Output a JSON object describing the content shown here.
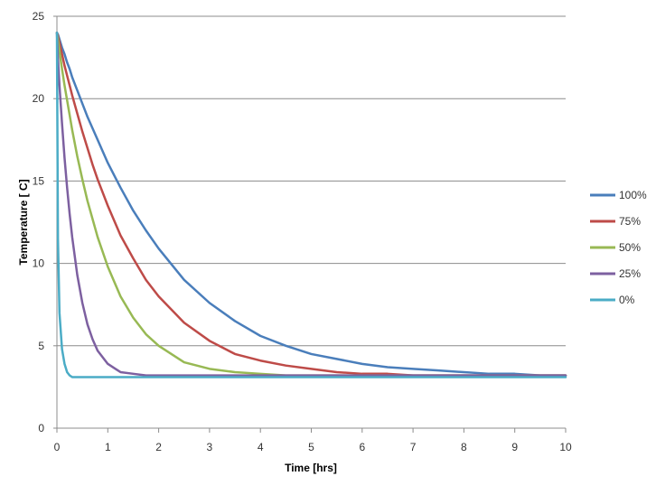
{
  "chart_data": {
    "type": "line",
    "title": "",
    "xlabel": "Time [hrs]",
    "ylabel": "Temperature [ C]",
    "xlim": [
      0,
      10
    ],
    "ylim": [
      0,
      25
    ],
    "xticks": [
      0,
      1,
      2,
      3,
      4,
      5,
      6,
      7,
      8,
      9,
      10
    ],
    "yticks": [
      0,
      5,
      10,
      15,
      20,
      25
    ],
    "grid": "horizontal",
    "legend_position": "right",
    "x": [
      0,
      0.02,
      0.05,
      0.1,
      0.15,
      0.2,
      0.25,
      0.3,
      0.4,
      0.5,
      0.6,
      0.7,
      0.8,
      1,
      1.25,
      1.5,
      1.75,
      2,
      2.5,
      3,
      3.5,
      4,
      4.5,
      5,
      5.5,
      6,
      6.5,
      7,
      7.5,
      8,
      8.5,
      9,
      9.5,
      10
    ],
    "series": [
      {
        "name": "100%",
        "color": "#4a7ebb",
        "values": [
          24.0,
          23.9,
          23.6,
          23.1,
          22.7,
          22.2,
          21.8,
          21.3,
          20.5,
          19.7,
          18.9,
          18.2,
          17.5,
          16.1,
          14.6,
          13.2,
          12.0,
          10.9,
          9.0,
          7.6,
          6.5,
          5.6,
          5.0,
          4.5,
          4.2,
          3.9,
          3.7,
          3.6,
          3.5,
          3.4,
          3.3,
          3.3,
          3.2,
          3.2
        ]
      },
      {
        "name": "75%",
        "color": "#be4b48",
        "values": [
          24.0,
          23.8,
          23.4,
          22.7,
          22.0,
          21.4,
          20.8,
          20.2,
          19.1,
          18.0,
          17.0,
          16.0,
          15.1,
          13.5,
          11.7,
          10.3,
          9.0,
          8.0,
          6.4,
          5.3,
          4.5,
          4.1,
          3.8,
          3.6,
          3.4,
          3.3,
          3.3,
          3.2,
          3.2,
          3.2,
          3.2,
          3.2,
          3.2,
          3.2
        ]
      },
      {
        "name": "50%",
        "color": "#98b954",
        "values": [
          24.0,
          23.6,
          22.9,
          21.8,
          20.8,
          19.9,
          19.0,
          18.1,
          16.5,
          15.1,
          13.8,
          12.7,
          11.6,
          9.8,
          8.0,
          6.7,
          5.7,
          5.0,
          4.0,
          3.6,
          3.4,
          3.3,
          3.2,
          3.2,
          3.2,
          3.2,
          3.2,
          3.2,
          3.2,
          3.2,
          3.2,
          3.2,
          3.2,
          3.2
        ]
      },
      {
        "name": "25%",
        "color": "#7d60a0",
        "values": [
          24.0,
          22.5,
          20.8,
          18.5,
          16.4,
          14.6,
          13.0,
          11.6,
          9.3,
          7.6,
          6.3,
          5.4,
          4.7,
          3.9,
          3.4,
          3.3,
          3.2,
          3.2,
          3.2,
          3.2,
          3.2,
          3.2,
          3.2,
          3.2,
          3.2,
          3.2,
          3.2,
          3.2,
          3.2,
          3.2,
          3.2,
          3.2,
          3.2,
          3.2
        ]
      },
      {
        "name": "0%",
        "color": "#4bacc6",
        "values": [
          24.0,
          11.5,
          7.0,
          4.8,
          3.9,
          3.4,
          3.2,
          3.1,
          3.1,
          3.1,
          3.1,
          3.1,
          3.1,
          3.1,
          3.1,
          3.1,
          3.1,
          3.1,
          3.1,
          3.1,
          3.1,
          3.1,
          3.1,
          3.1,
          3.1,
          3.1,
          3.1,
          3.1,
          3.1,
          3.1,
          3.1,
          3.1,
          3.1,
          3.1
        ]
      }
    ]
  }
}
